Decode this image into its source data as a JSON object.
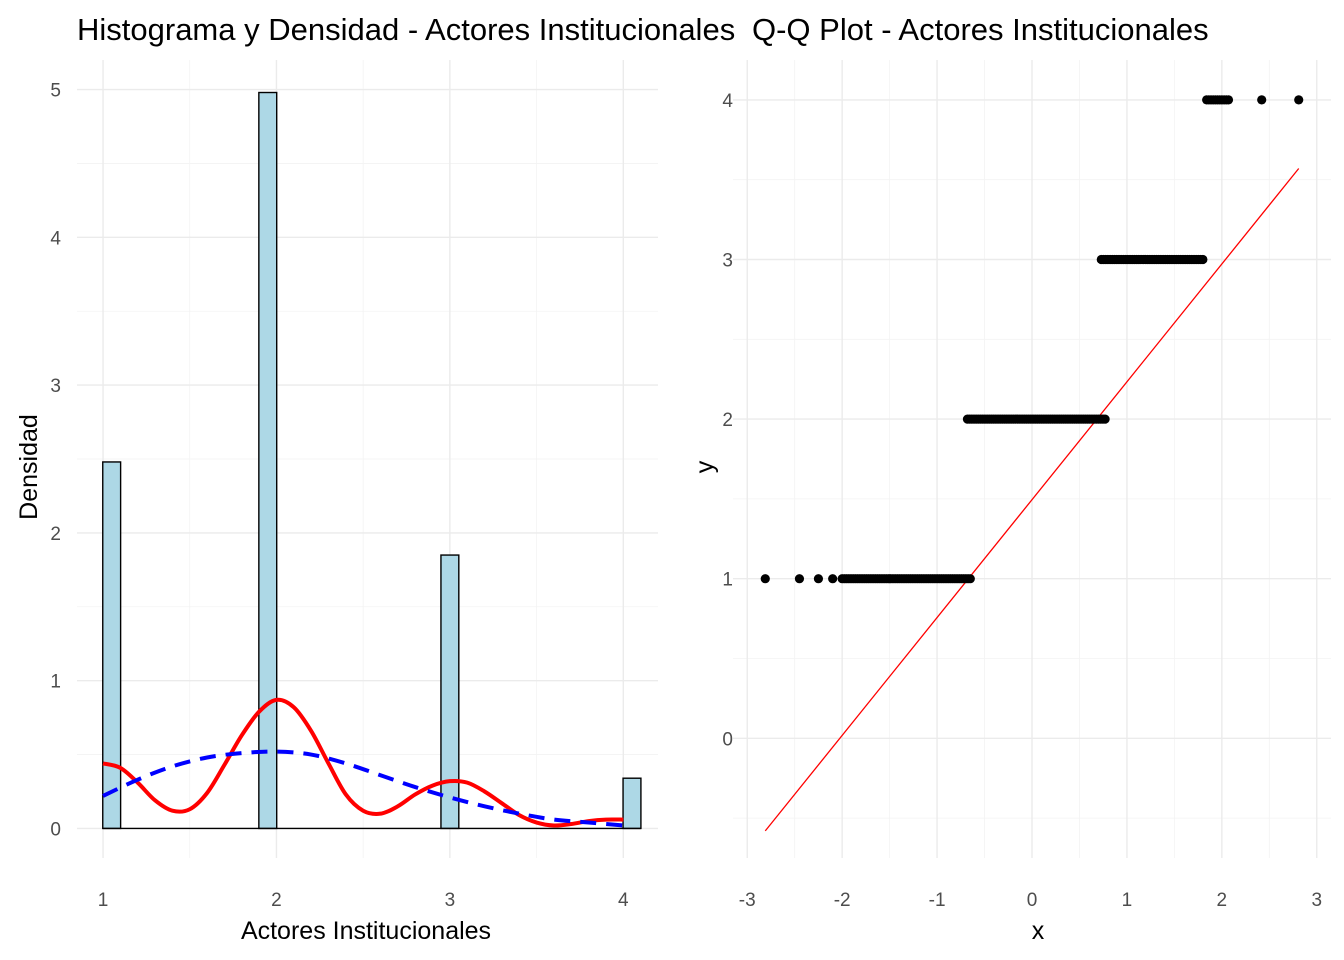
{
  "chart_data": [
    {
      "type": "bar",
      "title": "Histograma y Densidad - Actores Institucionales",
      "xlabel": "Actores Institucionales",
      "ylabel": "Densidad",
      "xlim": [
        0.85,
        4.2
      ],
      "ylim": [
        -0.2,
        5.2
      ],
      "x_ticks": [
        1,
        2,
        3,
        4
      ],
      "y_ticks": [
        0,
        1,
        2,
        3,
        4,
        5
      ],
      "bar_width": 0.103,
      "bar_fill": "#add8e6",
      "bar_stroke": "#000000",
      "bars": [
        {
          "x": 1.05,
          "value": 2.48
        },
        {
          "x": 1.95,
          "value": 4.98
        },
        {
          "x": 3.0,
          "value": 1.85
        },
        {
          "x": 4.05,
          "value": 0.34
        }
      ],
      "series": [
        {
          "style": "solid",
          "color": "#ff0000",
          "points": [
            [
              1.0,
              0.44
            ],
            [
              1.1,
              0.41
            ],
            [
              1.2,
              0.31
            ],
            [
              1.3,
              0.19
            ],
            [
              1.4,
              0.12
            ],
            [
              1.5,
              0.13
            ],
            [
              1.6,
              0.24
            ],
            [
              1.7,
              0.43
            ],
            [
              1.8,
              0.63
            ],
            [
              1.9,
              0.79
            ],
            [
              2.0,
              0.87
            ],
            [
              2.1,
              0.82
            ],
            [
              2.2,
              0.66
            ],
            [
              2.3,
              0.44
            ],
            [
              2.4,
              0.23
            ],
            [
              2.5,
              0.12
            ],
            [
              2.6,
              0.1
            ],
            [
              2.7,
              0.15
            ],
            [
              2.8,
              0.23
            ],
            [
              2.9,
              0.29
            ],
            [
              3.0,
              0.32
            ],
            [
              3.1,
              0.31
            ],
            [
              3.2,
              0.25
            ],
            [
              3.3,
              0.17
            ],
            [
              3.4,
              0.09
            ],
            [
              3.5,
              0.04
            ],
            [
              3.6,
              0.02
            ],
            [
              3.7,
              0.03
            ],
            [
              3.8,
              0.05
            ],
            [
              3.9,
              0.06
            ],
            [
              4.0,
              0.06
            ]
          ]
        },
        {
          "style": "dashed",
          "color": "#0000ff",
          "points": [
            [
              1.0,
              0.22
            ],
            [
              1.2,
              0.33
            ],
            [
              1.4,
              0.42
            ],
            [
              1.6,
              0.48
            ],
            [
              1.8,
              0.51
            ],
            [
              2.0,
              0.52
            ],
            [
              2.2,
              0.5
            ],
            [
              2.4,
              0.44
            ],
            [
              2.6,
              0.36
            ],
            [
              2.8,
              0.28
            ],
            [
              3.0,
              0.21
            ],
            [
              3.2,
              0.15
            ],
            [
              3.4,
              0.1
            ],
            [
              3.6,
              0.06
            ],
            [
              3.8,
              0.04
            ],
            [
              4.0,
              0.02
            ]
          ]
        }
      ]
    },
    {
      "type": "scatter",
      "title": "Q-Q Plot - Actores Institucionales",
      "xlabel": "x",
      "ylabel": "y",
      "xlim": [
        -3.15,
        3.15
      ],
      "ylim": [
        -0.75,
        4.25
      ],
      "x_ticks": [
        -3,
        -2,
        -1,
        0,
        1,
        2,
        3
      ],
      "y_ticks": [
        0,
        1,
        2,
        3,
        4
      ],
      "point_color": "#000000",
      "groups": [
        {
          "y": 1,
          "x_start": -0.65,
          "x_end": -2.0,
          "x_extra": [
            -2.81,
            -2.45,
            -2.25,
            -2.1
          ]
        },
        {
          "y": 2,
          "x_start": -0.68,
          "x_end": 0.77,
          "x_extra": []
        },
        {
          "y": 3,
          "x_start": 0.73,
          "x_end": 1.8,
          "x_extra": []
        },
        {
          "y": 4,
          "x_start": 1.84,
          "x_end": 2.07,
          "x_extra": [
            2.42,
            2.81
          ]
        }
      ],
      "line": {
        "color": "#ff0000",
        "x": [
          -2.81,
          2.81
        ],
        "y": [
          -0.58,
          3.57
        ]
      }
    }
  ]
}
